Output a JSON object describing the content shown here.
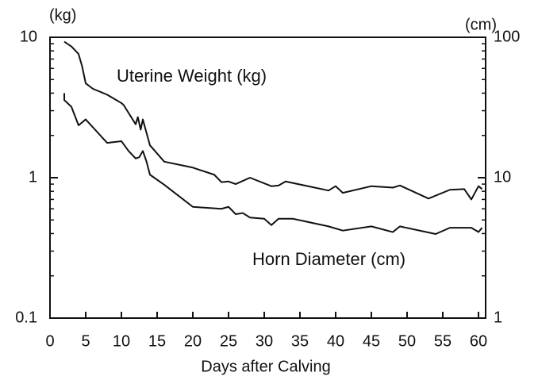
{
  "chart_data": {
    "type": "line",
    "xlabel": "Days after Calving",
    "ylabel": "(kg)",
    "y2label": "(cm)",
    "annotations": [
      "Uterine Weight (kg)",
      "Horn Diameter (cm)"
    ],
    "xlim": [
      0,
      61
    ],
    "xticks": [
      0,
      5,
      10,
      15,
      20,
      25,
      30,
      35,
      40,
      45,
      50,
      55,
      60
    ],
    "ylim": [
      0.1,
      10
    ],
    "yticks": [
      0.1,
      1,
      10
    ],
    "yminorticks": [
      0.2,
      0.3,
      0.4,
      0.5,
      0.6,
      0.7,
      0.8,
      0.9,
      2,
      3,
      4,
      5,
      6,
      7,
      8,
      9
    ],
    "y2lim": [
      1,
      100
    ],
    "y2ticks": [
      1,
      10,
      100
    ],
    "y2minorticks": [
      2,
      3,
      4,
      5,
      6,
      7,
      8,
      9,
      20,
      30,
      40,
      50,
      60,
      70,
      80,
      90
    ],
    "log_y": true,
    "log_y2": true,
    "series": [
      {
        "name": "Uterine Weight (kg)",
        "color": "#111111",
        "axis": "y",
        "x": [
          2,
          3,
          4,
          4.5,
          5,
          6,
          8,
          10,
          10.3,
          12,
          12.3,
          12.7,
          13,
          13.5,
          14,
          16,
          20,
          23,
          24,
          25,
          26,
          28,
          31,
          32,
          33,
          39,
          40,
          41,
          45,
          48,
          49,
          53,
          56,
          58,
          59,
          60,
          60.5
        ],
        "values": [
          9.3,
          8.6,
          7.6,
          6.2,
          4.7,
          4.3,
          3.9,
          3.4,
          3.3,
          2.4,
          2.7,
          2.2,
          2.6,
          2.1,
          1.7,
          1.3,
          1.18,
          1.05,
          0.93,
          0.94,
          0.9,
          1.0,
          0.87,
          0.88,
          0.94,
          0.81,
          0.87,
          0.78,
          0.87,
          0.85,
          0.88,
          0.71,
          0.82,
          0.83,
          0.7,
          0.87,
          0.83
        ]
      },
      {
        "name": "Horn Diameter (cm)",
        "color": "#111111",
        "axis": "y2",
        "x": [
          2,
          2,
          3,
          4,
          5,
          8,
          10,
          11,
          12,
          12.5,
          13,
          13.5,
          14,
          16,
          20,
          24,
          25,
          26,
          27,
          28,
          30,
          31,
          32,
          34,
          39,
          41,
          45,
          48,
          49,
          54,
          56,
          59,
          60,
          60.5
        ],
        "values": [
          40,
          35.7,
          32,
          23.6,
          26,
          17.7,
          18.2,
          15.5,
          13.7,
          14,
          15.5,
          13.1,
          10.5,
          8.9,
          6.2,
          6.0,
          6.2,
          5.5,
          5.6,
          5.2,
          5.1,
          4.6,
          5.1,
          5.1,
          4.5,
          4.2,
          4.5,
          4.1,
          4.5,
          3.97,
          4.4,
          4.4,
          4.1,
          4.4
        ]
      }
    ]
  }
}
